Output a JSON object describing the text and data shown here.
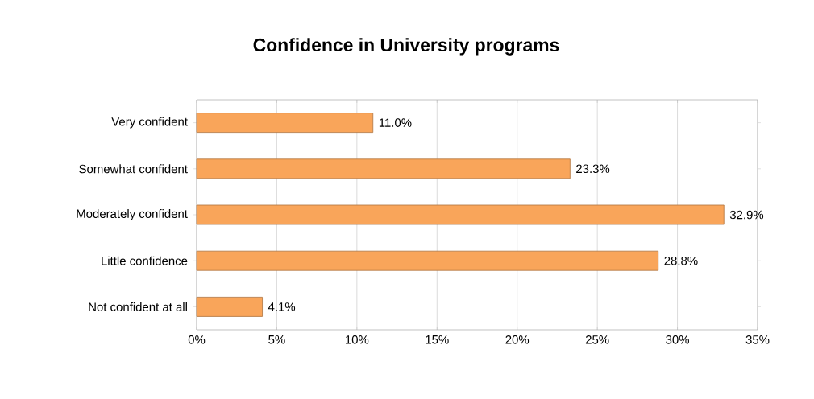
{
  "chart_data": {
    "type": "bar",
    "orientation": "horizontal",
    "title": "Confidence in University programs",
    "categories": [
      "Very confident",
      "Somewhat confident",
      "Moderately confident",
      "Little confidence",
      "Not confident at all"
    ],
    "values": [
      11.0,
      23.3,
      32.9,
      28.8,
      4.1
    ],
    "value_labels": [
      "11.0%",
      "23.3%",
      "32.9%",
      "28.8%",
      "4.1%"
    ],
    "color": "#f9a55a",
    "xlim": [
      0,
      35
    ],
    "xticks": [
      {
        "value": 0,
        "label": "0%"
      },
      {
        "value": 5,
        "label": "5%"
      },
      {
        "value": 10,
        "label": "10%"
      },
      {
        "value": 15,
        "label": "15%"
      },
      {
        "value": 20,
        "label": "20%"
      },
      {
        "value": 25,
        "label": "25%"
      },
      {
        "value": 30,
        "label": "30%"
      },
      {
        "value": 35,
        "label": "35%"
      }
    ],
    "grid": "x"
  }
}
